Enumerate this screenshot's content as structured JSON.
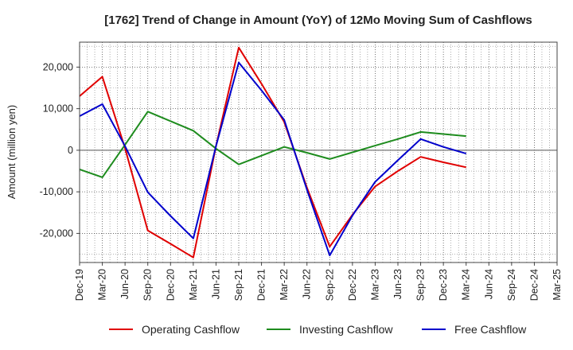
{
  "chart_data": {
    "type": "line",
    "title": "[1762]  Trend of Change in Amount (YoY) of 12Mo Moving Sum of Cashflows",
    "xlabel": "",
    "ylabel": "Amount (million yen)",
    "ylim": [
      -27000,
      26000
    ],
    "yticks": [
      -20000,
      -10000,
      0,
      10000,
      20000
    ],
    "ytick_labels": [
      "-20,000",
      "-10,000",
      "0",
      "10,000",
      "20,000"
    ],
    "categories": [
      "Dec-19",
      "Mar-20",
      "Jun-20",
      "Sep-20",
      "Dec-20",
      "Mar-21",
      "Jun-21",
      "Sep-21",
      "Dec-21",
      "Mar-22",
      "Jun-22",
      "Sep-22",
      "Dec-22",
      "Mar-23",
      "Jun-23",
      "Sep-23",
      "Dec-23",
      "Mar-24",
      "Jun-24",
      "Sep-24",
      "Dec-24",
      "Mar-25"
    ],
    "grid": true,
    "legend_position": "bottom",
    "series": [
      {
        "name": "Operating Cashflow",
        "color": "#e00000",
        "values": [
          13000,
          17700,
          500,
          -19300,
          -22500,
          -25800,
          1000,
          24700,
          16000,
          6800,
          -9000,
          -23200,
          -15500,
          -8700,
          -5000,
          -1600,
          -2900,
          -4100,
          null,
          null,
          null,
          null
        ]
      },
      {
        "name": "Investing Cashflow",
        "color": "#1e8c1e",
        "values": [
          -4600,
          -6500,
          1300,
          9300,
          7000,
          4700,
          400,
          -3400,
          -1300,
          800,
          -600,
          -2100,
          -500,
          1100,
          2700,
          4400,
          3900,
          3400,
          null,
          null,
          null,
          null
        ]
      },
      {
        "name": "Free Cashflow",
        "color": "#0000cc",
        "values": [
          8200,
          11100,
          1000,
          -10100,
          -15800,
          -21200,
          1000,
          21100,
          14400,
          7300,
          -9500,
          -25300,
          -15700,
          -7600,
          -2400,
          2700,
          800,
          -800,
          null,
          null,
          null,
          null
        ]
      }
    ]
  }
}
